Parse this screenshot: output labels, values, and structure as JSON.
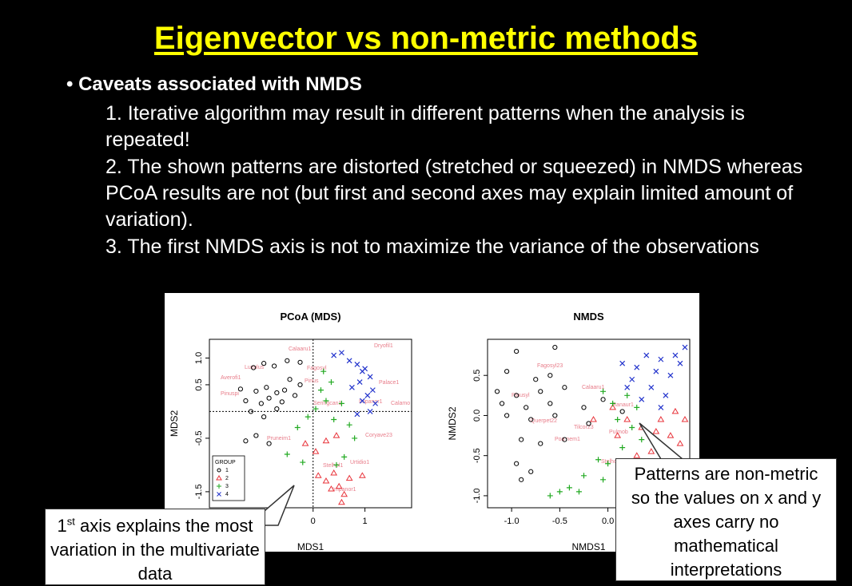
{
  "slide": {
    "title": "Eigenvector vs non-metric methods",
    "bullet": "Caveats associated with NMDS",
    "items": [
      "1. Iterative algorithm may result in different patterns when the analysis is repeated!",
      "2. The shown patterns are distorted (stretched or squeezed) in NMDS whereas PCoA results are not (but first and second axes may explain limited amount of variation).",
      "3. The first NMDS axis is not to maximize the variance of the observations"
    ]
  },
  "callouts": {
    "left_sup": "st",
    "left_rest": " axis explains the most variation in the multivariate data",
    "left_num": "1",
    "right": "Patterns are non-metric so the values on x and y axes carry no mathematical interpretations"
  },
  "chart_data": [
    {
      "type": "scatter",
      "title": "PCoA (MDS)",
      "xlabel": "MDS1",
      "ylabel": "MDS2",
      "xlim": [
        -2,
        1.9
      ],
      "ylim": [
        -1.8,
        1.35
      ],
      "xticks": [
        "0",
        "1"
      ],
      "yticks": [
        "1.0",
        "0.5",
        "-0.5",
        "-1.5"
      ],
      "legend": {
        "title": "GROUP",
        "entries": [
          "1",
          "2",
          "3",
          "4"
        ],
        "position": "bottom-left"
      },
      "point_labels": [
        "Calaaru1",
        "Dryofil1",
        "Luzulus",
        "Averofi1",
        "Pinuspi",
        "Fagosyl",
        "Pinus",
        "Impanor1",
        "Coryave23",
        "Pruneim1",
        "Stelhol1",
        "Urtidio1",
        "Impanor1",
        "Calamo",
        "Palace1",
        "Seringcan1"
      ],
      "series": [
        {
          "name": "1",
          "points": [
            [
              -1.15,
              0.82
            ],
            [
              -0.95,
              0.9
            ],
            [
              -0.75,
              0.85
            ],
            [
              -0.5,
              0.95
            ],
            [
              -0.25,
              0.92
            ],
            [
              -1.4,
              0.42
            ],
            [
              -1.1,
              0.38
            ],
            [
              -0.9,
              0.45
            ],
            [
              -0.7,
              0.35
            ],
            [
              -0.55,
              0.4
            ],
            [
              -0.35,
              0.3
            ],
            [
              -1.3,
              0.2
            ],
            [
              -1.0,
              0.15
            ],
            [
              -0.85,
              0.25
            ],
            [
              -0.6,
              0.18
            ],
            [
              -1.2,
              0.0
            ],
            [
              -0.95,
              -0.1
            ],
            [
              -0.7,
              0.05
            ],
            [
              -1.3,
              -0.55
            ],
            [
              -1.1,
              -0.45
            ],
            [
              -0.85,
              -0.6
            ],
            [
              -0.45,
              0.6
            ],
            [
              -0.25,
              0.5
            ]
          ]
        },
        {
          "name": "2",
          "points": [
            [
              -0.15,
              -0.6
            ],
            [
              0.05,
              -0.75
            ],
            [
              0.25,
              -0.55
            ],
            [
              0.45,
              -0.45
            ],
            [
              0.1,
              -1.2
            ],
            [
              0.25,
              -1.3
            ],
            [
              0.35,
              -1.45
            ],
            [
              0.5,
              -1.4
            ],
            [
              0.6,
              -1.55
            ],
            [
              0.55,
              -1.7
            ],
            [
              0.7,
              -1.25
            ],
            [
              0.95,
              -1.2
            ],
            [
              0.4,
              -1.15
            ]
          ]
        },
        {
          "name": "3",
          "points": [
            [
              -0.5,
              -0.8
            ],
            [
              -0.3,
              -0.3
            ],
            [
              -0.1,
              -0.1
            ],
            [
              0.05,
              0.05
            ],
            [
              0.25,
              0.2
            ],
            [
              0.4,
              -0.15
            ],
            [
              0.55,
              0.15
            ],
            [
              0.7,
              -0.25
            ],
            [
              0.2,
              0.75
            ],
            [
              0.35,
              0.55
            ],
            [
              0.15,
              0.4
            ],
            [
              0.6,
              -0.85
            ],
            [
              0.45,
              -1.0
            ],
            [
              -0.2,
              -0.95
            ],
            [
              0.8,
              -0.5
            ]
          ]
        },
        {
          "name": "4",
          "points": [
            [
              0.4,
              1.05
            ],
            [
              0.55,
              1.1
            ],
            [
              0.7,
              0.95
            ],
            [
              0.85,
              0.88
            ],
            [
              1.0,
              0.8
            ],
            [
              1.1,
              0.65
            ],
            [
              0.9,
              0.55
            ],
            [
              0.75,
              0.45
            ],
            [
              1.15,
              0.4
            ],
            [
              1.05,
              0.3
            ],
            [
              0.95,
              0.2
            ],
            [
              1.2,
              0.15
            ],
            [
              0.85,
              -0.05
            ],
            [
              1.1,
              0.0
            ],
            [
              0.95,
              0.75
            ]
          ]
        }
      ]
    },
    {
      "type": "scatter",
      "title": "NMDS",
      "xlabel": "NMDS1",
      "ylabel": "NMDS2",
      "xlim": [
        -1.25,
        0.85
      ],
      "ylim": [
        -1.15,
        0.95
      ],
      "xticks": [
        "-1.0",
        "-0.5",
        "0.0"
      ],
      "yticks": [
        "0.5",
        "0.0",
        "-0.5",
        "-1.0"
      ],
      "point_labels": [
        "Fagosyl23",
        "Pinusyl",
        "Calaaru1",
        "Querpet22",
        "Poa nem1",
        "Tilcor23",
        "Pulmob",
        "Stelhol1",
        "Ranaur1"
      ],
      "series": [
        {
          "name": "1",
          "points": [
            [
              -0.95,
              0.8
            ],
            [
              -0.55,
              0.85
            ],
            [
              -1.05,
              0.55
            ],
            [
              -0.75,
              0.45
            ],
            [
              -0.6,
              0.5
            ],
            [
              -1.15,
              0.3
            ],
            [
              -0.95,
              0.25
            ],
            [
              -0.7,
              0.3
            ],
            [
              -0.45,
              0.35
            ],
            [
              -1.1,
              0.15
            ],
            [
              -0.85,
              0.1
            ],
            [
              -0.6,
              0.15
            ],
            [
              -1.05,
              0.0
            ],
            [
              -0.8,
              -0.05
            ],
            [
              -0.55,
              0.0
            ],
            [
              -0.9,
              -0.3
            ],
            [
              -0.7,
              -0.35
            ],
            [
              -0.45,
              -0.3
            ],
            [
              -0.95,
              -0.6
            ],
            [
              -0.8,
              -0.7
            ],
            [
              -0.9,
              -0.8
            ],
            [
              -0.25,
              0.1
            ],
            [
              -0.05,
              0.2
            ],
            [
              -0.2,
              -0.1
            ],
            [
              0.15,
              0.05
            ]
          ]
        },
        {
          "name": "2",
          "points": [
            [
              0.05,
              0.1
            ],
            [
              0.2,
              -0.05
            ],
            [
              0.35,
              -0.15
            ],
            [
              0.5,
              -0.2
            ],
            [
              0.65,
              -0.25
            ],
            [
              0.75,
              -0.35
            ],
            [
              0.55,
              -0.05
            ],
            [
              0.7,
              0.05
            ],
            [
              0.45,
              -0.45
            ],
            [
              0.3,
              -0.5
            ],
            [
              0.6,
              -0.55
            ],
            [
              0.8,
              -0.05
            ],
            [
              -0.15,
              -0.05
            ],
            [
              0.1,
              -0.25
            ]
          ]
        },
        {
          "name": "3",
          "points": [
            [
              -0.05,
              0.3
            ],
            [
              0.05,
              0.15
            ],
            [
              0.2,
              0.25
            ],
            [
              0.3,
              0.1
            ],
            [
              0.1,
              -0.05
            ],
            [
              0.25,
              -0.15
            ],
            [
              0.15,
              -0.4
            ],
            [
              0.0,
              -0.6
            ],
            [
              -0.05,
              -0.8
            ],
            [
              -0.25,
              -0.75
            ],
            [
              -0.4,
              -0.9
            ],
            [
              -0.5,
              -0.95
            ],
            [
              -0.6,
              -1.0
            ],
            [
              -0.3,
              -0.95
            ],
            [
              0.35,
              -0.3
            ],
            [
              -0.1,
              -0.55
            ]
          ]
        },
        {
          "name": "4",
          "points": [
            [
              0.4,
              0.75
            ],
            [
              0.55,
              0.7
            ],
            [
              0.7,
              0.75
            ],
            [
              0.8,
              0.85
            ],
            [
              0.3,
              0.6
            ],
            [
              0.5,
              0.55
            ],
            [
              0.65,
              0.5
            ],
            [
              0.25,
              0.45
            ],
            [
              0.45,
              0.35
            ],
            [
              0.6,
              0.25
            ],
            [
              0.35,
              0.2
            ],
            [
              0.55,
              0.1
            ],
            [
              0.15,
              0.65
            ],
            [
              0.75,
              0.65
            ],
            [
              0.2,
              0.35
            ]
          ]
        }
      ]
    }
  ]
}
